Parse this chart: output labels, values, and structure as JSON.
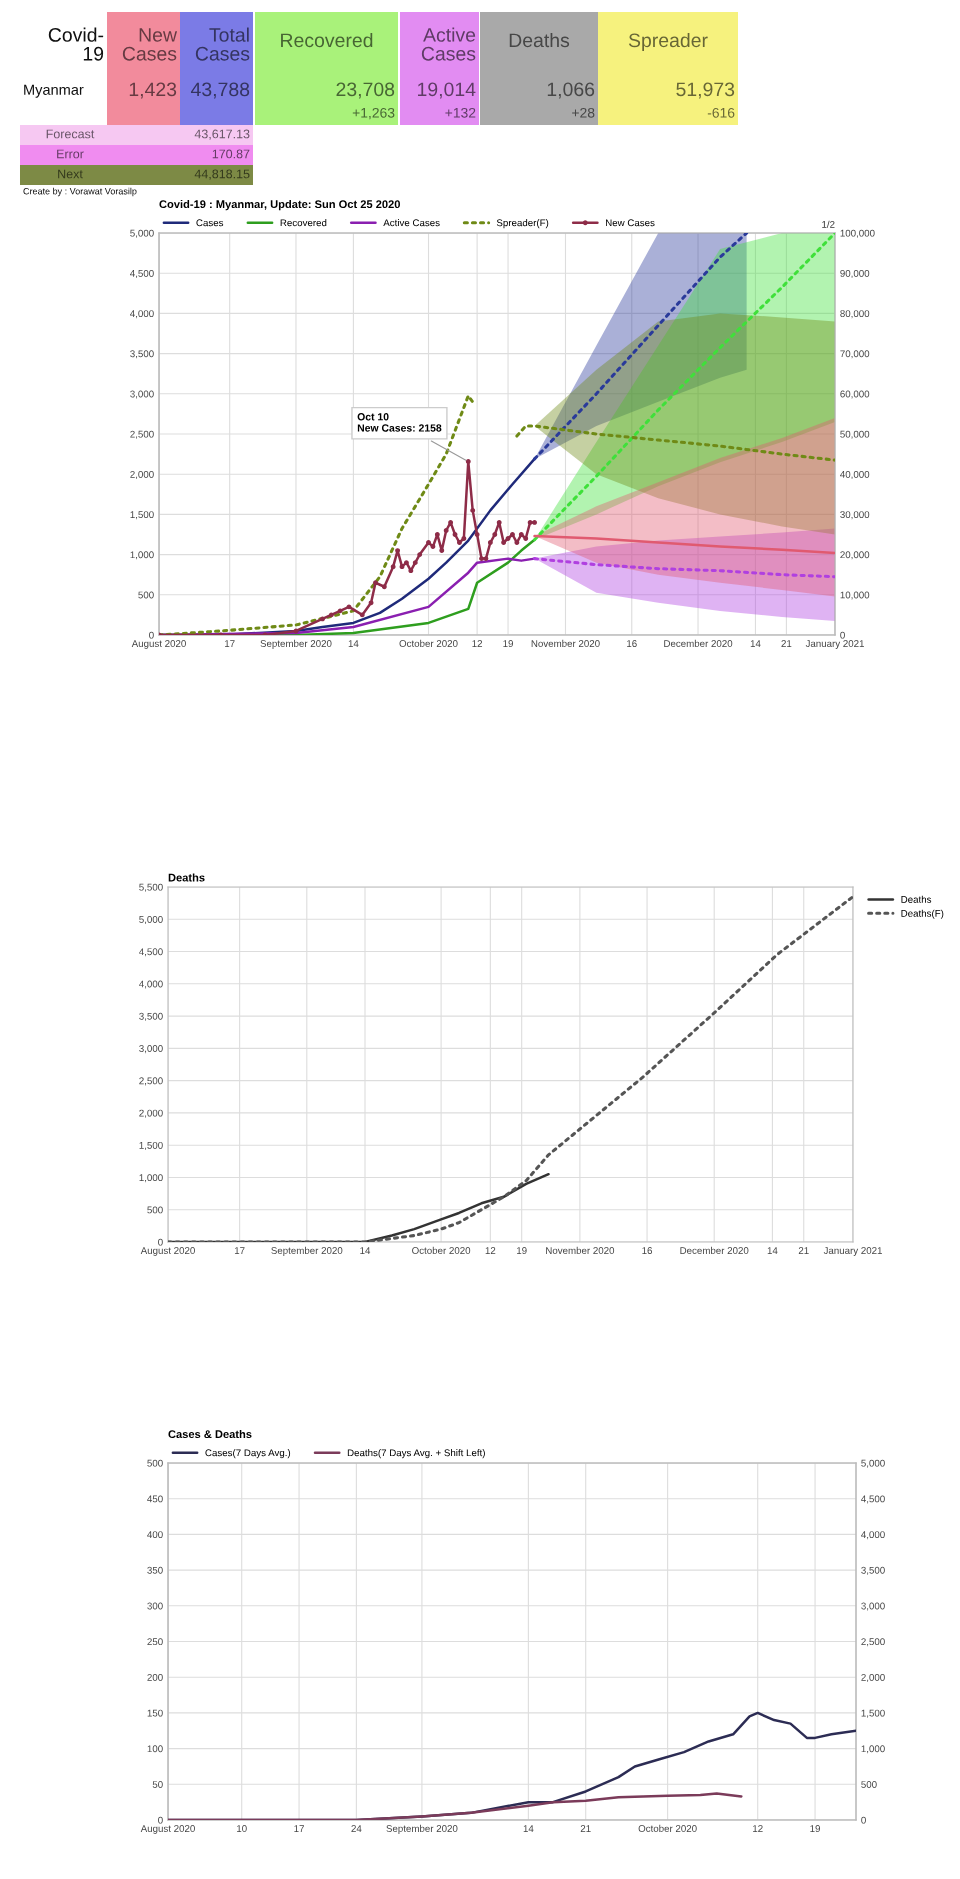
{
  "chart_data": [
    {
      "type": "other",
      "annotations": [
        "Covid-\n19",
        "New\nCases",
        "Total\nCases",
        "Recovered",
        "Active\nCases",
        "Deaths",
        "Spreader",
        "Myanmar",
        "1,423",
        "43,788",
        "23,708",
        "19,014",
        "1,066",
        "51,973",
        "+1,263",
        "+132",
        "+28",
        "-616",
        "Forecast",
        "43,617.13",
        "Error",
        "170.87",
        "Next",
        "44,818.15",
        "Create by : Vorawat Vorasilp"
      ],
      "colors": [
        "#ffffff",
        "#f28b9c",
        "#7b7be6",
        "#a9f27a",
        "#e28cf2",
        "#a9a9a9",
        "#f6f27e",
        "#ffffff",
        "#f28b9c",
        "#7b7be6",
        "#a9f27a",
        "#e28cf2",
        "#a9a9a9",
        "#f6f27e",
        "#a9f27a",
        "#e28cf2",
        "#a9a9a9",
        "#f6f27e",
        "#f6c8f2",
        "#f6c8f2",
        "#f08cf0",
        "#f08cf0",
        "#7d8a45",
        "#7d8a45",
        null
      ]
    },
    {
      "type": "line",
      "title": "Covid-19 : Myanmar, Update: Sun Oct 25 2020",
      "xlim": [
        "2020-08-01",
        "2021-01-01"
      ],
      "xticks": [
        {
          "value": "2020-08-01",
          "label": "August 2020"
        },
        {
          "value": "2020-08-17",
          "label": "17"
        },
        {
          "value": "2020-09-01",
          "label": "September 2020"
        },
        {
          "value": "2020-09-14",
          "label": "14"
        },
        {
          "value": "2020-10-01",
          "label": "October 2020"
        },
        {
          "value": "2020-10-12",
          "label": "12"
        },
        {
          "value": "2020-10-19",
          "label": "19"
        },
        {
          "value": "2020-11-01",
          "label": "November 2020"
        },
        {
          "value": "2020-11-16",
          "label": "16"
        },
        {
          "value": "2020-12-01",
          "label": "December 2020"
        },
        {
          "value": "2020-12-14",
          "label": "14"
        },
        {
          "value": "2020-12-21",
          "label": "21"
        },
        {
          "value": "2021-01-01",
          "label": "January 2021"
        }
      ],
      "ylim": [
        0,
        5000
      ],
      "yticks": [
        0,
        500,
        {
          "value": 1000,
          "label": "1,000"
        },
        {
          "value": 1500,
          "label": "1,500"
        },
        {
          "value": 2000,
          "label": "2,000"
        },
        {
          "value": 2500,
          "label": "2,500"
        },
        {
          "value": 3000,
          "label": "3,000"
        },
        {
          "value": 3500,
          "label": "3,500"
        },
        {
          "value": 4000,
          "label": "4,000"
        },
        {
          "value": 4500,
          "label": "4,500"
        },
        {
          "value": 5000,
          "label": "5,000"
        }
      ],
      "y2lim": [
        0,
        100000
      ],
      "y2ticks": [
        0,
        {
          "value": 10000,
          "label": "10,000"
        },
        {
          "value": 20000,
          "label": "20,000"
        },
        {
          "value": 30000,
          "label": "30,000"
        },
        {
          "value": 40000,
          "label": "40,000"
        },
        {
          "value": 50000,
          "label": "50,000"
        },
        {
          "value": 60000,
          "label": "60,000"
        },
        {
          "value": 70000,
          "label": "70,000"
        },
        {
          "value": 80000,
          "label": "80,000"
        },
        {
          "value": 90000,
          "label": "90,000"
        },
        {
          "value": 100000,
          "label": "100,000"
        }
      ],
      "grid": true,
      "legend": "top",
      "annotations": [
        {
          "text": "Oct 10\nNew Cases: 2158",
          "x": "2020-10-10",
          "y": 2158
        },
        "1/2"
      ],
      "series": [
        {
          "name": "Cases",
          "color": "#1f2a7a",
          "axis": "y2",
          "x": [
            "2020-08-01",
            "2020-08-15",
            "2020-09-01",
            "2020-09-07",
            "2020-09-14",
            "2020-09-20",
            "2020-09-25",
            "2020-10-01",
            "2020-10-05",
            "2020-10-10",
            "2020-10-15",
            "2020-10-20",
            "2020-10-25"
          ],
          "values": [
            0,
            0,
            1000,
            2000,
            3000,
            5500,
            9000,
            14000,
            18000,
            23500,
            31000,
            37500,
            43800
          ]
        },
        {
          "color": "#2a3a9a",
          "axis": "y2",
          "line_style": "dotted",
          "x": [
            "2020-10-25",
            "2020-11-08",
            "2020-11-22",
            "2020-12-06",
            "2020-12-12"
          ],
          "values": [
            43800,
            60000,
            77000,
            94000,
            100000
          ],
          "lower": [
            43800,
            52000,
            58000,
            64000,
            66000
          ],
          "upper": [
            43800,
            72000,
            100000,
            100000,
            100000
          ]
        },
        {
          "name": "Recovered",
          "color": "#2e9e1e",
          "axis": "y2",
          "x": [
            "2020-08-01",
            "2020-09-01",
            "2020-09-14",
            "2020-10-01",
            "2020-10-10",
            "2020-10-12",
            "2020-10-19",
            "2020-10-22",
            "2020-10-25"
          ],
          "values": [
            0,
            0,
            500,
            3000,
            6500,
            13000,
            18000,
            21000,
            23700
          ]
        },
        {
          "color": "#3fe03a",
          "axis": "y2",
          "line_style": "dotted",
          "x": [
            "2020-10-25",
            "2020-11-08",
            "2020-11-22",
            "2020-12-06",
            "2020-12-20",
            "2021-01-01"
          ],
          "values": [
            23700,
            39500,
            56000,
            71500,
            86500,
            100000
          ],
          "lower": [
            23700,
            30000,
            37000,
            43000,
            48000,
            53000
          ],
          "upper": [
            23700,
            48000,
            72000,
            96000,
            100000,
            100000
          ]
        },
        {
          "name": "Active Cases",
          "color": "#8a1fb0",
          "axis": "y2",
          "x": [
            "2020-08-01",
            "2020-09-01",
            "2020-09-14",
            "2020-10-01",
            "2020-10-10",
            "2020-10-12",
            "2020-10-19",
            "2020-10-22",
            "2020-10-25"
          ],
          "values": [
            0,
            500,
            2000,
            7000,
            15500,
            18000,
            19000,
            18500,
            19000
          ]
        },
        {
          "color": "#b040e0",
          "axis": "y2",
          "line_style": "dotted",
          "x": [
            "2020-10-25",
            "2020-11-08",
            "2020-11-22",
            "2020-12-06",
            "2020-12-20",
            "2021-01-01"
          ],
          "values": [
            19000,
            17500,
            16500,
            16000,
            15000,
            14500
          ],
          "lower": [
            19000,
            10500,
            8000,
            6000,
            4500,
            3500
          ],
          "upper": [
            19000,
            22000,
            23500,
            24500,
            25500,
            26500
          ]
        },
        {
          "name": "Spreader(F)",
          "color": "#6f8a16",
          "axis": "y2",
          "line_style": "dotted",
          "x": [
            "2020-08-01",
            "2020-08-15",
            "2020-09-01",
            "2020-09-14",
            "2020-09-20",
            "2020-09-25",
            "2020-10-01",
            "2020-10-05",
            "2020-10-10",
            "2020-10-11",
            "2020-10-15",
            "2020-10-21",
            "2020-10-23",
            "2020-10-25",
            "2020-11-08",
            "2020-11-22",
            "2020-12-06",
            "2020-12-20",
            "2021-01-01"
          ],
          "values": [
            0,
            1000,
            2500,
            6000,
            14500,
            26500,
            37500,
            45000,
            59500,
            58000,
            null,
            49500,
            52000,
            52000,
            50000,
            48500,
            47000,
            45000,
            43500
          ],
          "lower": [
            null,
            null,
            null,
            null,
            null,
            null,
            null,
            null,
            null,
            null,
            null,
            null,
            null,
            52000,
            40000,
            34000,
            30000,
            27000,
            25000
          ],
          "upper": [
            null,
            null,
            null,
            null,
            null,
            null,
            null,
            null,
            null,
            null,
            null,
            null,
            null,
            52000,
            66000,
            78000,
            80000,
            79000,
            78000
          ]
        },
        {
          "name": "New Cases",
          "color": "#8e2c48",
          "marker": "circle",
          "x": [
            "2020-08-01",
            "2020-08-15",
            "2020-08-25",
            "2020-09-01",
            "2020-09-07",
            "2020-09-09",
            "2020-09-11",
            "2020-09-13",
            "2020-09-16",
            "2020-09-18",
            "2020-09-19",
            "2020-09-21",
            "2020-09-23",
            "2020-09-24",
            "2020-09-25",
            "2020-09-26",
            "2020-09-27",
            "2020-09-28",
            "2020-09-29",
            "2020-10-01",
            "2020-10-02",
            "2020-10-03",
            "2020-10-04",
            "2020-10-05",
            "2020-10-06",
            "2020-10-07",
            "2020-10-08",
            "2020-10-09",
            "2020-10-10",
            "2020-10-11",
            "2020-10-12",
            "2020-10-13",
            "2020-10-14",
            "2020-10-15",
            "2020-10-16",
            "2020-10-17",
            "2020-10-18",
            "2020-10-19",
            "2020-10-20",
            "2020-10-21",
            "2020-10-22",
            "2020-10-23",
            "2020-10-24",
            "2020-10-25"
          ],
          "values": [
            0,
            0,
            0,
            50,
            200,
            250,
            300,
            350,
            250,
            400,
            650,
            600,
            850,
            1050,
            850,
            900,
            800,
            900,
            1000,
            1150,
            1100,
            1250,
            1050,
            1300,
            1400,
            1250,
            1150,
            1200,
            2158,
            1550,
            1250,
            950,
            950,
            1150,
            1250,
            1400,
            1150,
            1200,
            1250,
            1150,
            1250,
            1200,
            1400,
            1400
          ]
        },
        {
          "color": "#e05a70",
          "x": [
            "2020-10-25",
            "2020-11-08",
            "2020-11-22",
            "2020-12-06",
            "2020-12-20",
            "2021-01-01"
          ],
          "values": [
            1230,
            1200,
            1150,
            1100,
            1060,
            1020
          ],
          "lower": [
            1230,
            900,
            750,
            650,
            560,
            480
          ],
          "upper": [
            1230,
            1600,
            1900,
            2200,
            2450,
            2700
          ]
        }
      ]
    },
    {
      "type": "line",
      "title": "Deaths",
      "xlim": [
        "2020-08-01",
        "2021-01-01"
      ],
      "xticks": [
        {
          "value": "2020-08-01",
          "label": "August 2020"
        },
        {
          "value": "2020-08-17",
          "label": "17"
        },
        {
          "value": "2020-09-01",
          "label": "September 2020"
        },
        {
          "value": "2020-09-14",
          "label": "14"
        },
        {
          "value": "2020-10-01",
          "label": "October 2020"
        },
        {
          "value": "2020-10-12",
          "label": "12"
        },
        {
          "value": "2020-10-19",
          "label": "19"
        },
        {
          "value": "2020-11-01",
          "label": "November 2020"
        },
        {
          "value": "2020-11-16",
          "label": "16"
        },
        {
          "value": "2020-12-01",
          "label": "December 2020"
        },
        {
          "value": "2020-12-14",
          "label": "14"
        },
        {
          "value": "2020-12-21",
          "label": "21"
        },
        {
          "value": "2021-01-01",
          "label": "January 2021"
        }
      ],
      "ylim": [
        0,
        5500
      ],
      "yticks": [
        0,
        500,
        {
          "value": 1000,
          "label": "1,000"
        },
        {
          "value": 1500,
          "label": "1,500"
        },
        {
          "value": 2000,
          "label": "2,000"
        },
        {
          "value": 2500,
          "label": "2,500"
        },
        {
          "value": 3000,
          "label": "3,000"
        },
        {
          "value": 3500,
          "label": "3,500"
        },
        {
          "value": 4000,
          "label": "4,000"
        },
        {
          "value": 4500,
          "label": "4,500"
        },
        {
          "value": 5000,
          "label": "5,000"
        },
        {
          "value": 5500,
          "label": "5,500"
        }
      ],
      "grid": true,
      "legend": "right",
      "series": [
        {
          "name": "Deaths",
          "color": "#333333",
          "x": [
            "2020-08-01",
            "2020-09-01",
            "2020-09-14",
            "2020-09-20",
            "2020-09-25",
            "2020-10-01",
            "2020-10-05",
            "2020-10-10",
            "2020-10-15",
            "2020-10-20",
            "2020-10-25"
          ],
          "values": [
            0,
            0,
            0,
            100,
            200,
            350,
            450,
            600,
            700,
            900,
            1050
          ]
        },
        {
          "name": "Deaths(F)",
          "color": "#555555",
          "line_style": "dotted",
          "x": [
            "2020-08-01",
            "2020-09-14",
            "2020-09-25",
            "2020-10-01",
            "2020-10-05",
            "2020-10-10",
            "2020-10-15",
            "2020-10-20",
            "2020-10-25",
            "2020-11-01",
            "2020-11-15",
            "2020-12-01",
            "2020-12-15",
            "2021-01-01"
          ],
          "values": [
            0,
            0,
            100,
            200,
            300,
            500,
            700,
            950,
            1350,
            1750,
            2550,
            3550,
            4450,
            5350
          ]
        }
      ]
    },
    {
      "type": "line",
      "title": "Cases & Deaths",
      "xlim": [
        "2020-08-01",
        "2020-10-24"
      ],
      "xticks": [
        {
          "value": "2020-08-01",
          "label": "August 2020"
        },
        {
          "value": "2020-08-10",
          "label": "10"
        },
        {
          "value": "2020-08-17",
          "label": "17"
        },
        {
          "value": "2020-08-24",
          "label": "24"
        },
        {
          "value": "2020-09-01",
          "label": "September 2020"
        },
        {
          "value": "2020-09-14",
          "label": "14"
        },
        {
          "value": "2020-09-21",
          "label": "21"
        },
        {
          "value": "2020-10-01",
          "label": "October 2020"
        },
        {
          "value": "2020-10-12",
          "label": "12"
        },
        {
          "value": "2020-10-19",
          "label": "19"
        }
      ],
      "ylim": [
        0,
        500
      ],
      "yticks": [
        0,
        50,
        100,
        150,
        200,
        250,
        300,
        350,
        400,
        450,
        500
      ],
      "y2lim": [
        0,
        5000
      ],
      "y2ticks": [
        0,
        500,
        {
          "value": 1000,
          "label": "1,000"
        },
        {
          "value": 1500,
          "label": "1,500"
        },
        {
          "value": 2000,
          "label": "2,000"
        },
        {
          "value": 2500,
          "label": "2,500"
        },
        {
          "value": 3000,
          "label": "3,000"
        },
        {
          "value": 3500,
          "label": "3,500"
        },
        {
          "value": 4000,
          "label": "4,000"
        },
        {
          "value": 4500,
          "label": "4,500"
        },
        {
          "value": 5000,
          "label": "5,000"
        }
      ],
      "grid": true,
      "legend": "top",
      "series": [
        {
          "name": "Cases(7 Days Avg.)",
          "color": "#2c2c54",
          "axis": "y2",
          "x": [
            "2020-08-01",
            "2020-08-24",
            "2020-09-01",
            "2020-09-07",
            "2020-09-14",
            "2020-09-17",
            "2020-09-21",
            "2020-09-25",
            "2020-09-27",
            "2020-09-30",
            "2020-10-03",
            "2020-10-06",
            "2020-10-09",
            "2020-10-11",
            "2020-10-12",
            "2020-10-14",
            "2020-10-16",
            "2020-10-18",
            "2020-10-19",
            "2020-10-21",
            "2020-10-24"
          ],
          "values": [
            0,
            0,
            50,
            100,
            250,
            250,
            400,
            600,
            750,
            850,
            950,
            1100,
            1200,
            1450,
            1500,
            1400,
            1350,
            1150,
            1150,
            1200,
            1250
          ]
        },
        {
          "name": "Deaths(7 Days Avg. + Shift Left)",
          "color": "#7b3b5a",
          "x": [
            "2020-08-01",
            "2020-08-24",
            "2020-09-01",
            "2020-09-07",
            "2020-09-14",
            "2020-09-17",
            "2020-09-21",
            "2020-09-25",
            "2020-09-28",
            "2020-10-01",
            "2020-10-05",
            "2020-10-07",
            "2020-10-10"
          ],
          "values": [
            0,
            0,
            5,
            10,
            20,
            25,
            27,
            32,
            33,
            34,
            35,
            37,
            33
          ]
        }
      ]
    }
  ]
}
